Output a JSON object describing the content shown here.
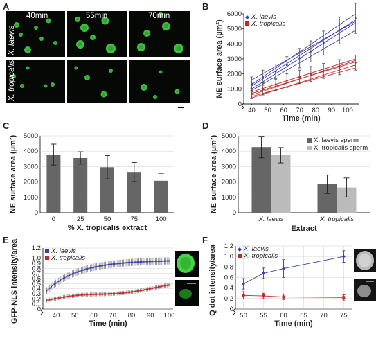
{
  "panels": {
    "a": {
      "label": "A",
      "timepoints": [
        "40min",
        "55min",
        "70min"
      ],
      "rows": [
        "X. laevis",
        "X. tropicalis"
      ]
    },
    "b": {
      "label": "B"
    },
    "c": {
      "label": "C"
    },
    "d": {
      "label": "D"
    },
    "e": {
      "label": "E"
    },
    "f": {
      "label": "F"
    }
  },
  "colors": {
    "laevis": "#3a3cb0",
    "tropicalis": "#c0282a",
    "bar_dark": "#666666",
    "bar_light": "#bbbbbb"
  },
  "chart_data": [
    {
      "id": "b",
      "type": "line",
      "xlabel": "Time (min)",
      "ylabel": "NE surface area (µm²)",
      "xticks": [
        "40",
        "50",
        "60",
        "70",
        "80",
        "90",
        "100"
      ],
      "yticks": [
        "0",
        "1000",
        "2000",
        "3000",
        "4000",
        "5000",
        "6000"
      ],
      "xlim": [
        35,
        107
      ],
      "ylim": [
        0,
        6000
      ],
      "axis_break": true,
      "legend": [
        "X. laevis",
        "X. tropicalis"
      ],
      "series": [
        {
          "name": "X. laevis",
          "x": [
            40,
            47,
            55,
            62,
            70,
            77,
            85,
            95,
            105
          ],
          "y": [
            1350,
            1750,
            2150,
            2600,
            3050,
            3500,
            4050,
            4900,
            5700
          ],
          "err": [
            450,
            500,
            500,
            550,
            650,
            700,
            800,
            900,
            1000
          ]
        },
        {
          "name": "X. tropicalis",
          "x": [
            40,
            47,
            55,
            62,
            70,
            77,
            85,
            95,
            105
          ],
          "y": [
            700,
            1000,
            1300,
            1550,
            1800,
            2000,
            2200,
            2450,
            2750
          ],
          "err": [
            350,
            400,
            400,
            450,
            450,
            500,
            500,
            500,
            500
          ]
        }
      ],
      "fit_lines": {
        "laevis": [
          [
            40,
            1000,
            105,
            5400
          ],
          [
            40,
            1300,
            105,
            6000
          ],
          [
            40,
            1600,
            105,
            5500
          ],
          [
            40,
            900,
            105,
            4900
          ],
          [
            40,
            1200,
            105,
            5600
          ]
        ],
        "tropicalis": [
          [
            40,
            400,
            105,
            2600
          ],
          [
            40,
            600,
            105,
            2900
          ],
          [
            40,
            800,
            105,
            3000
          ],
          [
            40,
            500,
            105,
            2400
          ],
          [
            40,
            700,
            105,
            2800
          ]
        ]
      }
    },
    {
      "id": "c",
      "type": "bar",
      "xlabel": "% X. tropicalis extract",
      "ylabel": "NE surface area (µm²)",
      "categories": [
        "0",
        "25",
        "50",
        "75",
        "100"
      ],
      "values": [
        3780,
        3560,
        2960,
        2650,
        2080
      ],
      "err": [
        680,
        400,
        760,
        620,
        480
      ],
      "yticks": [
        "0",
        "1000",
        "2000",
        "3000",
        "4000",
        "5000"
      ],
      "ylim": [
        0,
        5000
      ]
    },
    {
      "id": "d",
      "type": "bar",
      "xlabel": "Extract",
      "ylabel": "NE surface area (µm²)",
      "categories": [
        "X. laevis",
        "X. tropicalis"
      ],
      "series": [
        {
          "name": "X. laevis sperm",
          "values": [
            4270,
            1850
          ],
          "err": [
            700,
            600
          ]
        },
        {
          "name": "X. tropicalis sperm",
          "values": [
            3740,
            1640
          ],
          "err": [
            500,
            620
          ]
        }
      ],
      "yticks": [
        "0",
        "1000",
        "2000",
        "3000",
        "4000",
        "5000"
      ],
      "ylim": [
        0,
        5000
      ]
    },
    {
      "id": "e",
      "type": "scatter",
      "xlabel": "Time (min)",
      "ylabel": "GFP-NLS intensity/area",
      "xticks": [
        "40",
        "50",
        "60",
        "70",
        "80",
        "90",
        "100"
      ],
      "yticks": [
        "0",
        "0.1",
        "0.2",
        "0.3",
        "0.4",
        "0.5",
        "0.6",
        "0.7",
        "0.8",
        "0.9",
        "1.0",
        "1.2"
      ],
      "xlim": [
        33,
        102
      ],
      "ylim": [
        0,
        1.2
      ],
      "axis_break": true,
      "legend": [
        "X. laevis",
        "X. tropicalis"
      ],
      "series": [
        {
          "name": "X. laevis",
          "model": "0.96 - 0.6*exp(-(t-35)/17)",
          "x_range": [
            35,
            100
          ],
          "y_start": 0.38,
          "y_end": 0.95,
          "err": 0.07
        },
        {
          "name": "X. tropicalis",
          "model": "linear-ish",
          "x_range": [
            35,
            100
          ],
          "y_start": 0.17,
          "y_end": 0.45,
          "err": 0.04
        }
      ]
    },
    {
      "id": "f",
      "type": "line",
      "xlabel": "Time (min)",
      "ylabel": "Q dot intensity/area",
      "xticks": [
        "50",
        "55",
        "60",
        "65",
        "70",
        "75"
      ],
      "yticks": [
        "0",
        "0.2",
        "0.4",
        "0.6",
        "0.8",
        "1.0",
        "1.2"
      ],
      "xlim": [
        48,
        77
      ],
      "ylim": [
        0,
        1.2
      ],
      "axis_break": true,
      "legend": [
        "X. laevis",
        "X. tropicalis"
      ],
      "series": [
        {
          "name": "X. laevis",
          "x": [
            50,
            55,
            60,
            75
          ],
          "y": [
            0.48,
            0.68,
            0.77,
            1.0
          ],
          "err": [
            0.1,
            0.1,
            0.17,
            0.11
          ]
        },
        {
          "name": "X. tropicalis",
          "x": [
            50,
            55,
            60,
            75
          ],
          "y": [
            0.26,
            0.25,
            0.23,
            0.22
          ],
          "err": [
            0.07,
            0.05,
            0.05,
            0.05
          ]
        }
      ]
    }
  ]
}
